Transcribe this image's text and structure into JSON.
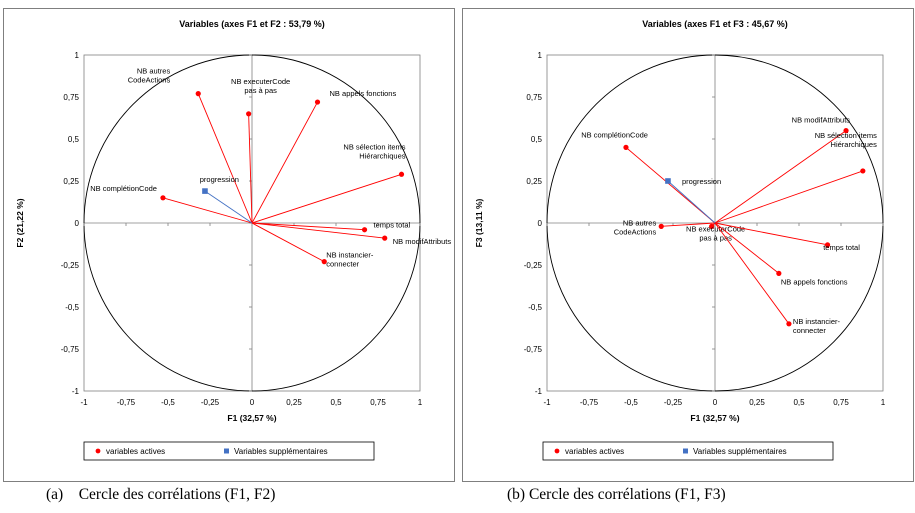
{
  "captions": {
    "a": "(a)    Cercle des corrélations (F1, F2)",
    "b": "(b) Cercle des corrélations (F1, F3)"
  },
  "colors": {
    "active": "#ff0000",
    "supplementary": "#4472c4",
    "axis": "#808080",
    "circle": "#000000"
  },
  "chart_data": [
    {
      "type": "scatter",
      "title": "Variables (axes F1 et F2 : 53,79 %)",
      "xlabel": "F1 (32,57 %)",
      "ylabel": "F2 (21,22 %)",
      "xlim": [
        -1,
        1
      ],
      "ylim": [
        -1,
        1
      ],
      "x_ticks": [
        "-1",
        "-0,75",
        "-0,5",
        "-0,25",
        "0",
        "0,25",
        "0,5",
        "0,75",
        "1"
      ],
      "y_ticks": [
        "-1",
        "-0,75",
        "-0,5",
        "-0,25",
        "0",
        "0,25",
        "0,5",
        "0,75",
        "1"
      ],
      "grid": false,
      "legend_position": "bottom",
      "legend": [
        "variables actives",
        "Variables supplémentaires"
      ],
      "series": [
        {
          "name": "variables actives",
          "points": [
            {
              "label": [
                "NB autres",
                "CodeActions"
              ],
              "x": -0.32,
              "y": 0.77
            },
            {
              "label": [
                "NB executerCode",
                "pas à pas"
              ],
              "x": -0.02,
              "y": 0.65
            },
            {
              "label": [
                "NB appels fonctions"
              ],
              "x": 0.39,
              "y": 0.72
            },
            {
              "label": [
                "NB sélection items",
                "Hiérarchiques"
              ],
              "x": 0.89,
              "y": 0.29
            },
            {
              "label": [
                "NB complétionCode"
              ],
              "x": -0.53,
              "y": 0.15
            },
            {
              "label": [
                "temps total"
              ],
              "x": 0.67,
              "y": -0.04
            },
            {
              "label": [
                "NB modifAttributs"
              ],
              "x": 0.79,
              "y": -0.09
            },
            {
              "label": [
                "NB instancier-",
                "connecter"
              ],
              "x": 0.43,
              "y": -0.23
            }
          ]
        },
        {
          "name": "Variables supplémentaires",
          "points": [
            {
              "label": [
                "progression"
              ],
              "x": -0.28,
              "y": 0.19
            }
          ]
        }
      ]
    },
    {
      "type": "scatter",
      "title": "Variables (axes F1 et F3 : 45,67 %)",
      "xlabel": "F1 (32,57 %)",
      "ylabel": "F3 (13,11 %)",
      "xlim": [
        -1,
        1
      ],
      "ylim": [
        -1,
        1
      ],
      "x_ticks": [
        "-1",
        "-0,75",
        "-0,5",
        "-0,25",
        "0",
        "0,25",
        "0,5",
        "0,75",
        "1"
      ],
      "y_ticks": [
        "-1",
        "-0,75",
        "-0,5",
        "-0,25",
        "0",
        "0,25",
        "0,5",
        "0,75",
        "1"
      ],
      "grid": false,
      "legend_position": "bottom",
      "legend": [
        "variables actives",
        "Variables supplémentaires"
      ],
      "series": [
        {
          "name": "variables actives",
          "points": [
            {
              "label": [
                "NB complétionCode"
              ],
              "x": -0.53,
              "y": 0.45
            },
            {
              "label": [
                "NB modifAttributs"
              ],
              "x": 0.78,
              "y": 0.55
            },
            {
              "label": [
                "NB sélection items",
                "Hiérarchiques"
              ],
              "x": 0.88,
              "y": 0.31
            },
            {
              "label": [
                "NB autres",
                "CodeActions"
              ],
              "x": -0.32,
              "y": -0.02
            },
            {
              "label": [
                "NB executerCode",
                "pas à pas"
              ],
              "x": -0.02,
              "y": -0.02
            },
            {
              "label": [
                "temps total"
              ],
              "x": 0.67,
              "y": -0.13
            },
            {
              "label": [
                "NB appels fonctions"
              ],
              "x": 0.38,
              "y": -0.3
            },
            {
              "label": [
                "NB instancier-",
                "connecter"
              ],
              "x": 0.44,
              "y": -0.6
            }
          ]
        },
        {
          "name": "Variables supplémentaires",
          "points": [
            {
              "label": [
                "progression"
              ],
              "x": -0.28,
              "y": 0.25
            }
          ]
        }
      ]
    }
  ]
}
